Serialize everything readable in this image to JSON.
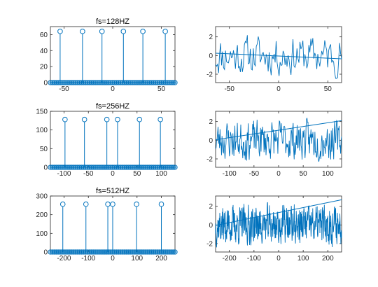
{
  "figure": {
    "colors": {
      "series": "#0072bd",
      "axis": "#262626",
      "background": "#ffffff"
    }
  },
  "chart_data": [
    {
      "type": "stem",
      "title": "fs=128HZ",
      "xlim": [
        -64,
        64
      ],
      "ylim": [
        0,
        70
      ],
      "xticks": [
        -50,
        0,
        50
      ],
      "yticks": [
        0,
        20,
        40,
        60
      ],
      "spikes": {
        "x": [
          -54,
          -31,
          -11,
          11,
          31,
          54
        ],
        "y": [
          64,
          64,
          64,
          64,
          64,
          64
        ]
      },
      "baseline": {
        "from": -64,
        "to": 64,
        "step": 2,
        "y": 0
      },
      "grid": false
    },
    {
      "type": "line",
      "title": "",
      "xlim": [
        -64,
        64
      ],
      "ylim": [
        -2.9,
        3.1
      ],
      "xticks": [
        -50,
        0,
        50
      ],
      "yticks": [
        -2,
        0,
        2
      ],
      "signal": {
        "points": 128,
        "amplitude": 2.8,
        "seed": 11
      },
      "trend": {
        "x": [
          -64,
          64
        ],
        "y": [
          0.25,
          -0.35
        ]
      },
      "grid": false
    },
    {
      "type": "stem",
      "title": "fs=256HZ",
      "xlim": [
        -128,
        128
      ],
      "ylim": [
        0,
        150
      ],
      "xticks": [
        -100,
        -50,
        0,
        50,
        100
      ],
      "yticks": [
        0,
        50,
        100,
        150
      ],
      "spikes": {
        "x": [
          -98,
          -58,
          -12,
          10,
          55,
          98
        ],
        "y": [
          128,
          128,
          128,
          128,
          128,
          128
        ]
      },
      "baseline": {
        "from": -128,
        "to": 128,
        "step": 4,
        "y": 0
      },
      "grid": false
    },
    {
      "type": "line",
      "title": "",
      "xlim": [
        -128,
        128
      ],
      "ylim": [
        -2.9,
        3.1
      ],
      "xticks": [
        -100,
        -50,
        0,
        50,
        100
      ],
      "yticks": [
        -2,
        0,
        2
      ],
      "signal": {
        "points": 256,
        "amplitude": 2.8,
        "seed": 23
      },
      "trend": {
        "x": [
          -128,
          128
        ],
        "y": [
          0.05,
          2.1
        ]
      },
      "grid": false
    },
    {
      "type": "stem",
      "title": "fs=512HZ",
      "xlim": [
        -256,
        256
      ],
      "ylim": [
        0,
        300
      ],
      "xticks": [
        -200,
        -100,
        0,
        100,
        200
      ],
      "yticks": [
        0,
        100,
        200,
        300
      ],
      "spikes": {
        "x": [
          -205,
          -110,
          -20,
          0,
          98,
          200
        ],
        "y": [
          256,
          256,
          256,
          256,
          256,
          256
        ]
      },
      "baseline": {
        "from": -256,
        "to": 256,
        "step": 8,
        "y": 0
      },
      "grid": false
    },
    {
      "type": "line",
      "title": "",
      "xlim": [
        -256,
        256
      ],
      "ylim": [
        -2.9,
        3.1
      ],
      "xticks": [
        -200,
        -100,
        0,
        100,
        200
      ],
      "yticks": [
        -2,
        0,
        2
      ],
      "signal": {
        "points": 512,
        "amplitude": 2.8,
        "seed": 37
      },
      "trend": {
        "x": [
          -256,
          256
        ],
        "y": [
          -0.05,
          2.7
        ]
      },
      "grid": false
    }
  ]
}
